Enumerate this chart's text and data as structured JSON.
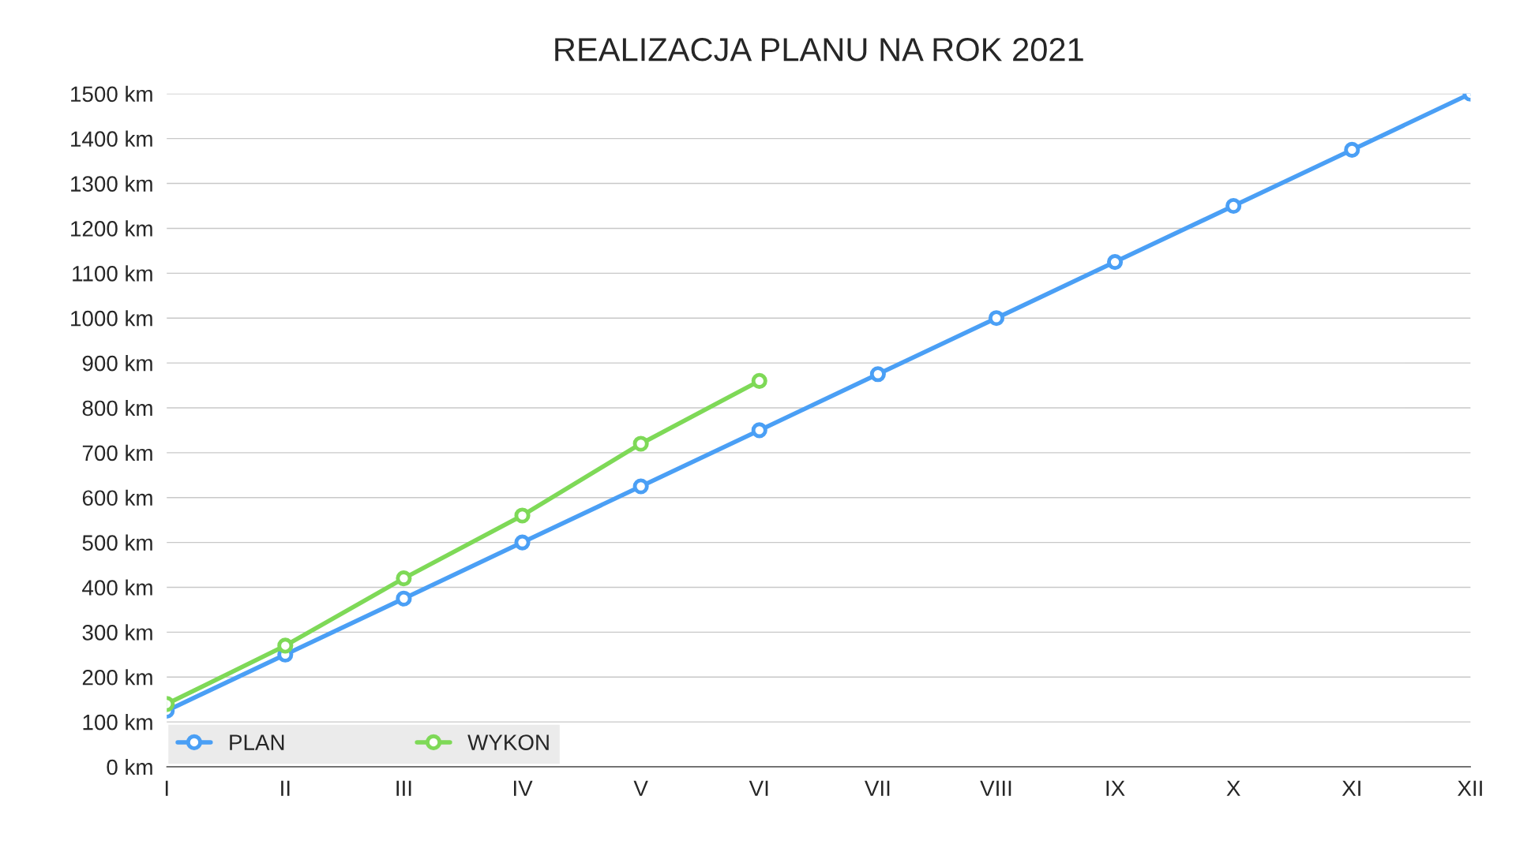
{
  "chart_data": {
    "type": "line",
    "title": "REALIZACJA PLANU NA ROK 2021",
    "categories": [
      "I",
      "II",
      "III",
      "IV",
      "V",
      "VI",
      "VII",
      "VIII",
      "IX",
      "X",
      "XI",
      "XII"
    ],
    "series": [
      {
        "name": "PLAN",
        "color": "#4a9ff5",
        "values": [
          125,
          250,
          375,
          500,
          625,
          750,
          875,
          1000,
          1125,
          1250,
          1375,
          1500
        ]
      },
      {
        "name": "WYKON",
        "color": "#7ed957",
        "values": [
          140,
          270,
          420,
          560,
          720,
          860,
          null,
          null,
          null,
          null,
          null,
          null
        ]
      }
    ],
    "ylim": [
      0,
      1500
    ],
    "yticks": [
      {
        "value": 0,
        "label": "0 km"
      },
      {
        "value": 100,
        "label": "100 km"
      },
      {
        "value": 200,
        "label": "200 km"
      },
      {
        "value": 300,
        "label": "300 km"
      },
      {
        "value": 400,
        "label": "400 km"
      },
      {
        "value": 500,
        "label": "500 km"
      },
      {
        "value": 600,
        "label": "600 km"
      },
      {
        "value": 700,
        "label": "700 km"
      },
      {
        "value": 800,
        "label": "800 km"
      },
      {
        "value": 900,
        "label": "900 km"
      },
      {
        "value": 1000,
        "label": "1000 km"
      },
      {
        "value": 1100,
        "label": "1100 km"
      },
      {
        "value": 1200,
        "label": "1200 km"
      },
      {
        "value": 1300,
        "label": "1300 km"
      },
      {
        "value": 1400,
        "label": "1400 km"
      },
      {
        "value": 1500,
        "label": "1500 km"
      }
    ],
    "grid": "y",
    "legend": "bottom left",
    "marker": "circle",
    "line_style": "solid"
  }
}
